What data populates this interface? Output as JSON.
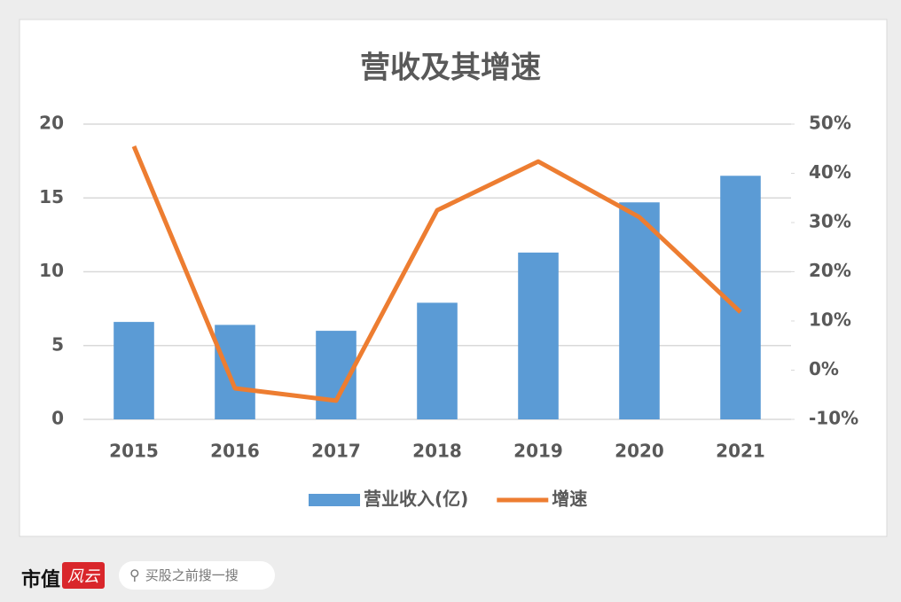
{
  "chart_data": {
    "type": "bar_line",
    "title": "营收及其增速",
    "categories": [
      "2015",
      "2016",
      "2017",
      "2018",
      "2019",
      "2020",
      "2021"
    ],
    "series": [
      {
        "name": "营业收入(亿)",
        "type": "bar",
        "color": "#5b9bd5",
        "values": [
          6.6,
          6.4,
          6.0,
          7.9,
          11.3,
          14.7,
          16.5
        ]
      },
      {
        "name": "增速",
        "type": "line",
        "axis": "y2",
        "color": "#ed7d31",
        "values": [
          45.5,
          -3.7,
          -6.2,
          32.5,
          42.4,
          31.1,
          11.8
        ]
      }
    ],
    "ylim": [
      0,
      20
    ],
    "yticks": [
      0,
      5,
      10,
      15,
      20
    ],
    "y2lim": [
      -10,
      50
    ],
    "y2ticks": [
      {
        "value": -10,
        "label": "-10%"
      },
      {
        "value": 0,
        "label": "0%"
      },
      {
        "value": 10,
        "label": "10%"
      },
      {
        "value": 20,
        "label": "20%"
      },
      {
        "value": 30,
        "label": "30%"
      },
      {
        "value": 40,
        "label": "40%"
      },
      {
        "value": 50,
        "label": "50%"
      }
    ],
    "grid": true,
    "legend": "bottom"
  },
  "footer": {
    "brand": "市值",
    "brand_mark": "风云",
    "search_placeholder": "买股之前搜一搜"
  }
}
